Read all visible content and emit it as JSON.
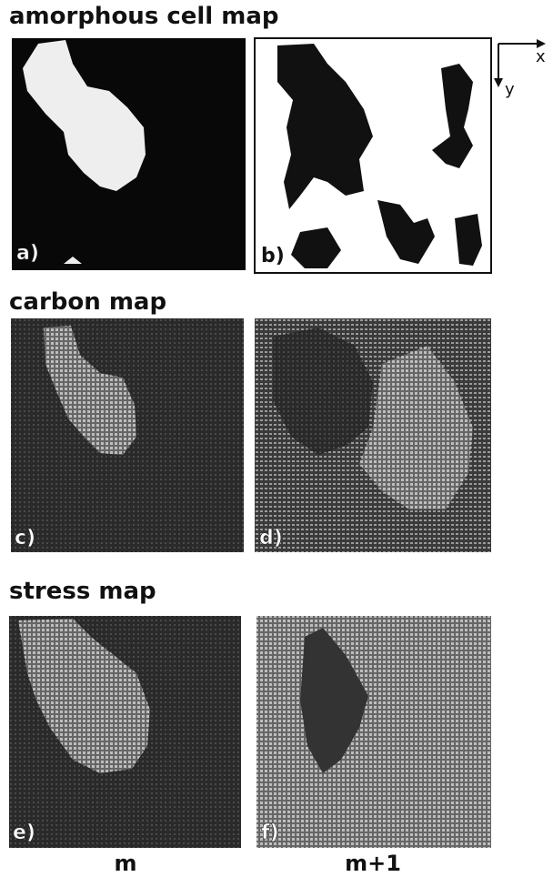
{
  "headings": [
    "amorphous cell map",
    "carbon map",
    "stress map"
  ],
  "panels": [
    {
      "label": "a)"
    },
    {
      "label": "b)"
    },
    {
      "label": "c)"
    },
    {
      "label": "d)"
    },
    {
      "label": "e)"
    },
    {
      "label": "f)"
    }
  ],
  "axes": {
    "x": "x",
    "y": "y"
  },
  "columns": [
    "m",
    "m+1"
  ]
}
